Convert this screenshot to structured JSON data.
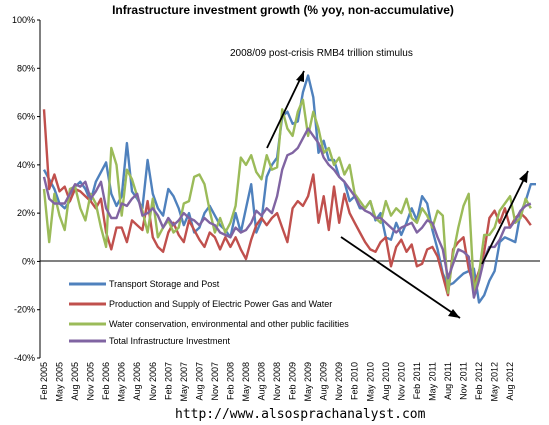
{
  "chart_data": {
    "type": "line",
    "title": "Infrastructure investment growth (% yoy, non-accumulative)",
    "annotation": "2008/09 post-crisis RMB4 trillion stimulus",
    "source": "http://www.alsosprachanalyst.com",
    "ylim": [
      -40,
      100
    ],
    "yticks": [
      "100%",
      "80%",
      "60%",
      "40%",
      "20%",
      "0%",
      "-20%",
      "-40%"
    ],
    "ytick_values": [
      100,
      80,
      60,
      40,
      20,
      0,
      -20,
      -40
    ],
    "grid": false,
    "legend_position": "bottom-left",
    "x_start": "2005-02",
    "x_labels": [
      "Feb 2005",
      "May 2005",
      "Aug 2005",
      "Nov 2005",
      "Feb 2006",
      "May 2006",
      "Aug 2006",
      "Nov 2006",
      "Feb 2007",
      "May 2007",
      "Aug 2007",
      "Nov 2007",
      "Feb 2008",
      "May 2008",
      "Aug 2008",
      "Nov 2008",
      "Feb 2009",
      "May 2009",
      "Aug 2009",
      "Nov 2009",
      "Feb 2010",
      "May 2010",
      "Aug 2010",
      "Nov 2010",
      "Feb 2011",
      "May 2011",
      "Aug 2011",
      "Nov 2011",
      "Feb 2012",
      "May 2012",
      "Aug 2012"
    ],
    "series": [
      {
        "name": "Transport Storage and Post",
        "color": "#4F81BD",
        "values": [
          38,
          34,
          30,
          24,
          22,
          25,
          31,
          33,
          30,
          25,
          33,
          37,
          41,
          28,
          23,
          27,
          49,
          29,
          26,
          22,
          42,
          28,
          22,
          19,
          30,
          27,
          22,
          15,
          20,
          12,
          14,
          20,
          23,
          19,
          15,
          13,
          10,
          20,
          12,
          22,
          32,
          12,
          17,
          35,
          40,
          43,
          60,
          62,
          57,
          58,
          70,
          77,
          68,
          45,
          50,
          42,
          42,
          35,
          33,
          25,
          27,
          22,
          22,
          25,
          17,
          20,
          10,
          9,
          16,
          11,
          16,
          22,
          17,
          27,
          24,
          13,
          5,
          -5,
          -10,
          -9,
          -7,
          -5,
          -4,
          -3,
          -17,
          -14,
          -8,
          -4,
          8,
          10,
          9,
          8,
          20,
          25,
          32,
          32
        ]
      },
      {
        "name": "Production and Supply of Electric Power Gas and Water",
        "color": "#C0504D",
        "values": [
          63,
          30,
          36,
          29,
          31,
          25,
          30,
          29,
          27,
          25,
          22,
          26,
          12,
          5,
          14,
          14,
          8,
          17,
          15,
          13,
          25,
          10,
          6,
          4,
          12,
          16,
          11,
          8,
          17,
          13,
          9,
          6,
          12,
          10,
          5,
          10,
          6,
          10,
          5,
          1,
          9,
          15,
          18,
          15,
          18,
          20,
          14,
          8,
          22,
          25,
          23,
          27,
          36,
          16,
          27,
          13,
          31,
          16,
          28,
          20,
          16,
          12,
          8,
          5,
          4,
          8,
          10,
          -2,
          6,
          9,
          4,
          7,
          -2,
          -1,
          5,
          6,
          2,
          -6,
          -14,
          5,
          8,
          10,
          -3,
          -10,
          -4,
          4,
          18,
          21,
          16,
          22,
          14,
          18,
          20,
          18,
          15
        ]
      },
      {
        "name": "Water conservation, environmental and other public facilities",
        "color": "#9BBB59",
        "values": [
          30,
          8,
          28,
          19,
          13,
          30,
          31,
          22,
          17,
          28,
          24,
          14,
          6,
          47,
          40,
          19,
          38,
          34,
          27,
          21,
          12,
          26,
          10,
          14,
          17,
          12,
          14,
          24,
          25,
          35,
          36,
          32,
          21,
          12,
          18,
          12,
          16,
          23,
          43,
          40,
          44,
          37,
          34,
          44,
          38,
          39,
          63,
          55,
          52,
          62,
          67,
          52,
          62,
          55,
          45,
          47,
          40,
          43,
          36,
          40,
          28,
          25,
          22,
          25,
          18,
          16,
          25,
          19,
          22,
          20,
          26,
          18,
          16,
          22,
          19,
          14,
          21,
          19,
          -13,
          3,
          14,
          23,
          28,
          -12,
          -5,
          11,
          11,
          14,
          21,
          24,
          27,
          16,
          18,
          26,
          22
        ]
      },
      {
        "name": "Total Infrastructure Investment",
        "color": "#8064A2",
        "values": [
          35,
          26,
          24,
          24,
          24,
          28,
          32,
          31,
          33,
          26,
          29,
          33,
          22,
          18,
          18,
          24,
          23,
          26,
          28,
          19,
          20,
          22,
          19,
          14,
          18,
          15,
          17,
          20,
          18,
          17,
          15,
          18,
          16,
          15,
          12,
          11,
          10,
          14,
          12,
          13,
          16,
          21,
          19,
          22,
          20,
          27,
          38,
          44,
          45,
          47,
          51,
          55,
          52,
          49,
          43,
          40,
          38,
          35,
          33,
          30,
          27,
          23,
          21,
          20,
          18,
          18,
          16,
          14,
          12,
          14,
          15,
          16,
          12,
          14,
          17,
          16,
          10,
          5,
          -7,
          -1,
          5,
          4,
          2,
          -15,
          -8,
          1,
          6,
          6,
          9,
          14,
          14,
          17,
          21,
          23,
          24
        ]
      }
    ]
  }
}
